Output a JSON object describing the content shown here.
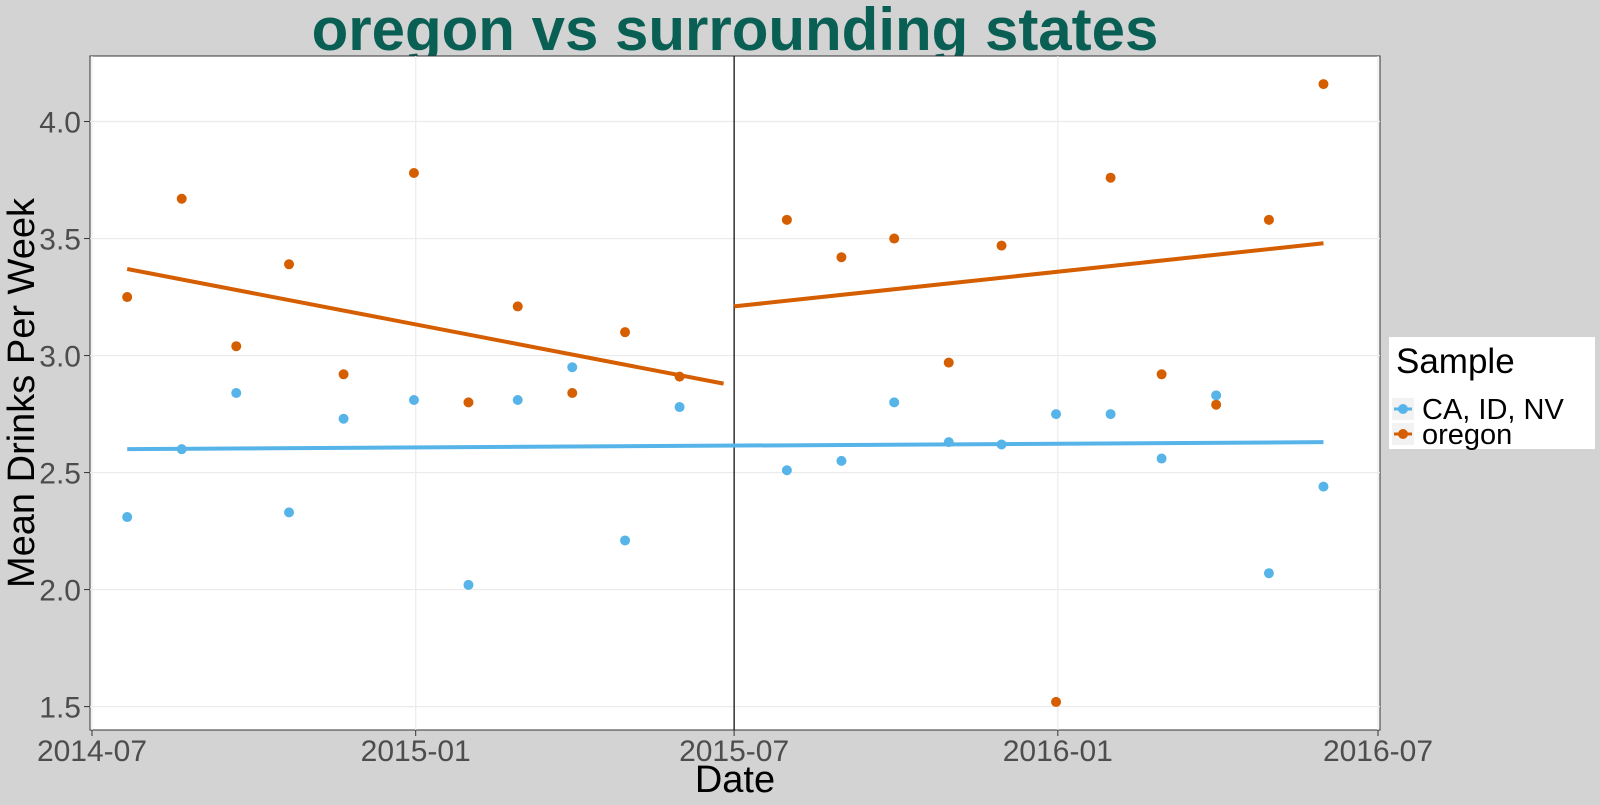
{
  "chart_data": {
    "type": "scatter",
    "title": "oregon vs surrounding states",
    "xlabel": "Date",
    "ylabel": "Mean Drinks Per Week",
    "xlim": [
      "2014-07-01",
      "2016-07-01"
    ],
    "ylim": [
      1.4,
      4.28
    ],
    "x_ticks": [
      "2014-07",
      "2015-01",
      "2015-07",
      "2016-01",
      "2016-07"
    ],
    "y_ticks": [
      "1.5",
      "2.0",
      "2.5",
      "3.0",
      "3.5",
      "4.0"
    ],
    "y_tick_values": [
      1.5,
      2.0,
      2.5,
      3.0,
      3.5,
      4.0
    ],
    "grid": true,
    "vertical_line_at": "2015-07-01",
    "legend": {
      "title": "Sample",
      "position": "right",
      "entries": [
        "CA, ID, NV",
        "oregon"
      ]
    },
    "colors": {
      "CA, ID, NV": "#56b4e9",
      "oregon": "#d55e00",
      "title": "#0a5f55"
    },
    "series": [
      {
        "name": "CA, ID, NV",
        "color": "#56b4e9",
        "points": [
          [
            "2014-07-21",
            2.31
          ],
          [
            "2014-08-21",
            2.6
          ],
          [
            "2014-09-21",
            2.84
          ],
          [
            "2014-10-21",
            2.33
          ],
          [
            "2014-11-21",
            2.73
          ],
          [
            "2014-12-31",
            2.81
          ],
          [
            "2015-01-31",
            2.02
          ],
          [
            "2015-02-28",
            2.81
          ],
          [
            "2015-03-31",
            2.95
          ],
          [
            "2015-04-30",
            2.21
          ],
          [
            "2015-05-31",
            2.78
          ],
          [
            "2015-07-31",
            2.51
          ],
          [
            "2015-08-31",
            2.55
          ],
          [
            "2015-09-30",
            2.8
          ],
          [
            "2015-10-31",
            2.63
          ],
          [
            "2015-11-30",
            2.62
          ],
          [
            "2015-12-31",
            2.75
          ],
          [
            "2016-01-31",
            2.75
          ],
          [
            "2016-02-29",
            2.56
          ],
          [
            "2016-03-31",
            2.83
          ],
          [
            "2016-04-30",
            2.07
          ],
          [
            "2016-05-31",
            2.44
          ]
        ],
        "trend": [
          {
            "from": [
              "2014-07-21",
              2.6
            ],
            "to": [
              "2016-05-31",
              2.63
            ]
          }
        ]
      },
      {
        "name": "oregon",
        "color": "#d55e00",
        "points": [
          [
            "2014-07-21",
            3.25
          ],
          [
            "2014-08-21",
            3.67
          ],
          [
            "2014-09-21",
            3.04
          ],
          [
            "2014-10-21",
            3.39
          ],
          [
            "2014-11-21",
            2.92
          ],
          [
            "2014-12-31",
            3.78
          ],
          [
            "2015-01-31",
            2.8
          ],
          [
            "2015-02-28",
            3.21
          ],
          [
            "2015-03-31",
            2.84
          ],
          [
            "2015-04-30",
            3.1
          ],
          [
            "2015-05-31",
            2.91
          ],
          [
            "2015-07-31",
            3.58
          ],
          [
            "2015-08-31",
            3.42
          ],
          [
            "2015-09-30",
            3.5
          ],
          [
            "2015-10-31",
            2.97
          ],
          [
            "2015-11-30",
            3.47
          ],
          [
            "2015-12-31",
            1.52
          ],
          [
            "2016-01-31",
            3.76
          ],
          [
            "2016-02-29",
            2.92
          ],
          [
            "2016-03-31",
            2.79
          ],
          [
            "2016-04-30",
            3.58
          ],
          [
            "2016-05-31",
            4.16
          ]
        ],
        "trend": [
          {
            "from": [
              "2014-07-21",
              3.37
            ],
            "to": [
              "2015-06-25",
              2.88
            ]
          },
          {
            "from": [
              "2015-07-01",
              3.21
            ],
            "to": [
              "2016-05-31",
              3.48
            ]
          }
        ]
      }
    ]
  }
}
